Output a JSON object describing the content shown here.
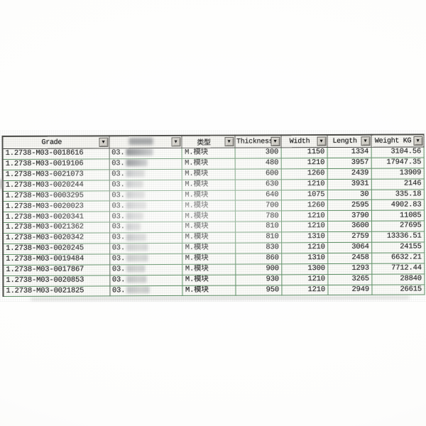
{
  "table": {
    "headers": [
      {
        "id": "grade",
        "label": "Grade"
      },
      {
        "id": "heat-no",
        "label": "",
        "redacted": true
      },
      {
        "id": "type",
        "label": "类型"
      },
      {
        "id": "thickness",
        "label": "Thickness"
      },
      {
        "id": "width",
        "label": "Width"
      },
      {
        "id": "length",
        "label": "Length"
      },
      {
        "id": "weight-kg",
        "label": "Weight KG"
      }
    ],
    "rows": [
      {
        "grade": "1.2738-M03-0018616",
        "code": "03.",
        "type": "M.模块",
        "thickness": "300",
        "width": "1150",
        "length": "1334",
        "weight_kg": "3104.56"
      },
      {
        "grade": "1.2738-M03-0019106",
        "code": "03.",
        "type": "M.模块",
        "thickness": "480",
        "width": "1210",
        "length": "3957",
        "weight_kg": "17947.35"
      },
      {
        "grade": "1.2738-M03-0021073",
        "code": "03.",
        "type": "M.模块",
        "thickness": "600",
        "width": "1260",
        "length": "2439",
        "weight_kg": "13909"
      },
      {
        "grade": "1.2738-M03-0020244",
        "code": "03.",
        "type": "M.模块",
        "thickness": "630",
        "width": "1210",
        "length": "3931",
        "weight_kg": "2146"
      },
      {
        "grade": "1.2738-M03-0003295",
        "code": "03.",
        "type": "M.模块",
        "thickness": "640",
        "width": "1075",
        "length": "30",
        "weight_kg": "335.18"
      },
      {
        "grade": "1.2738-M03-0020023",
        "code": "03.",
        "type": "M.模块",
        "thickness": "700",
        "width": "1260",
        "length": "2595",
        "weight_kg": "4902.83"
      },
      {
        "grade": "1.2738-M03-0020341",
        "code": "03.",
        "type": "M.模块",
        "thickness": "780",
        "width": "1210",
        "length": "3790",
        "weight_kg": "11085"
      },
      {
        "grade": "1.2738-M03-0021362",
        "code": "03.",
        "type": "M.模块",
        "thickness": "810",
        "width": "1210",
        "length": "3600",
        "weight_kg": "27695"
      },
      {
        "grade": "1.2738-M03-0020342",
        "code": "03.",
        "type": "M.模块",
        "thickness": "810",
        "width": "1310",
        "length": "2759",
        "weight_kg": "13336.51"
      },
      {
        "grade": "1.2738-M03-0020245",
        "code": "03.",
        "type": "M.模块",
        "thickness": "830",
        "width": "1210",
        "length": "3064",
        "weight_kg": "24155"
      },
      {
        "grade": "1.2738-M03-0019484",
        "code": "03.",
        "type": "M.模块",
        "thickness": "860",
        "width": "1310",
        "length": "2458",
        "weight_kg": "6632.21"
      },
      {
        "grade": "1.2738-M03-0017867",
        "code": "03.",
        "type": "M.模块",
        "thickness": "900",
        "width": "1300",
        "length": "1293",
        "weight_kg": "7712.44"
      },
      {
        "grade": "1.2738-M03-0020853",
        "code": "03.",
        "type": "M.模块",
        "thickness": "930",
        "width": "1210",
        "length": "3265",
        "weight_kg": "28840"
      },
      {
        "grade": "1.2738-M03-0021825",
        "code": "03.",
        "type": "M.模块",
        "thickness": "950",
        "width": "1210",
        "length": "2949",
        "weight_kg": "26615"
      }
    ]
  },
  "icons": {
    "dropdown_arrow": "▼"
  },
  "colors": {
    "grid_green": "#5e9066",
    "header_border": "#504f4b",
    "dropdown_bg": "#d2cfc8",
    "text": "#2a2a2a"
  }
}
